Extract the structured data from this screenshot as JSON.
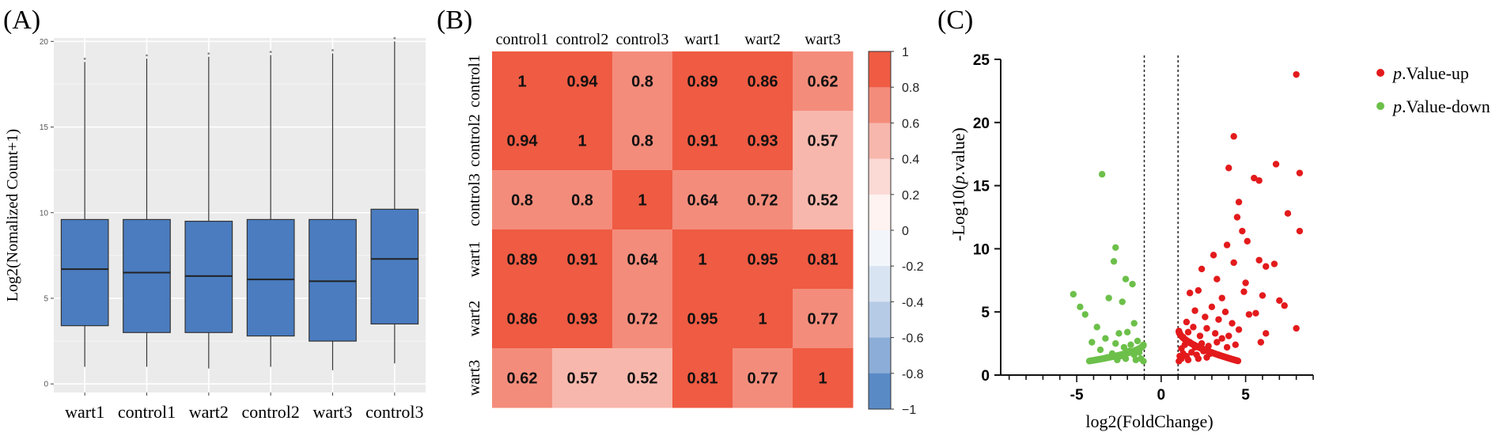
{
  "panel_labels": {
    "a": "(A)",
    "b": "(B)",
    "c": "(C)"
  },
  "colors": {
    "box_fill": "#4a7cbf",
    "panel_bg": "#ebebeb",
    "heat_high": "#ef5b43",
    "heat_mid": "#ffffff",
    "heat_low": "#5a8ac6",
    "up": "#e31a1c",
    "down": "#6cc04a"
  },
  "chart_data": [
    {
      "id": "boxplot",
      "type": "box",
      "title": "",
      "xlabel": "",
      "ylabel": "Log2(Nomalized Count+1)",
      "ylim": [
        -0.5,
        20.2
      ],
      "yticks": [
        0,
        5,
        10,
        15,
        20
      ],
      "categories": [
        "wart1",
        "control1",
        "wart2",
        "control2",
        "wart3",
        "control3"
      ],
      "boxes": [
        {
          "name": "wart1",
          "min": 1.0,
          "q1": 3.4,
          "median": 6.7,
          "q3": 9.6,
          "max": 18.8
        },
        {
          "name": "control1",
          "min": 1.0,
          "q1": 3.0,
          "median": 6.5,
          "q3": 9.6,
          "max": 19.0
        },
        {
          "name": "wart2",
          "min": 0.9,
          "q1": 3.0,
          "median": 6.3,
          "q3": 9.5,
          "max": 19.1
        },
        {
          "name": "control2",
          "min": 1.0,
          "q1": 2.8,
          "median": 6.1,
          "q3": 9.6,
          "max": 19.2
        },
        {
          "name": "wart3",
          "min": 0.8,
          "q1": 2.5,
          "median": 6.0,
          "q3": 9.6,
          "max": 19.3
        },
        {
          "name": "control3",
          "min": 1.2,
          "q1": 3.5,
          "median": 7.3,
          "q3": 10.2,
          "max": 20.0
        }
      ]
    },
    {
      "id": "heatmap",
      "type": "heatmap",
      "title": "",
      "column_labels": [
        "control1",
        "control2",
        "control3",
        "wart1",
        "wart2",
        "wart3"
      ],
      "row_labels": [
        "control1",
        "control2",
        "control3",
        "wart1",
        "wart2",
        "wart3"
      ],
      "matrix": [
        [
          1,
          0.94,
          0.8,
          0.89,
          0.86,
          0.62
        ],
        [
          0.94,
          1,
          0.8,
          0.91,
          0.93,
          0.57
        ],
        [
          0.8,
          0.8,
          1,
          0.64,
          0.72,
          0.52
        ],
        [
          0.89,
          0.91,
          0.64,
          1,
          0.95,
          0.81
        ],
        [
          0.86,
          0.93,
          0.72,
          0.95,
          1,
          0.77
        ],
        [
          0.62,
          0.57,
          0.52,
          0.81,
          0.77,
          1
        ]
      ],
      "colorbar_range": [
        -1,
        1
      ],
      "colorbar_ticks": [
        "1",
        "0.8",
        "0.6",
        "0.4",
        "0.2",
        "0",
        "-0.2",
        "-0.4",
        "-0.6",
        "-0.8",
        "−1"
      ]
    },
    {
      "id": "volcano",
      "type": "scatter",
      "title": "",
      "xlabel": "log2(FoldChange)",
      "ylabel_prefix": "-Log10(",
      "ylabel_italic": "p",
      "ylabel_suffix": ".value)",
      "xlim": [
        -9.5,
        9
      ],
      "ylim": [
        0,
        25
      ],
      "xticks": [
        -5,
        0,
        5
      ],
      "yticks": [
        0,
        5,
        10,
        15,
        20,
        25
      ],
      "thresholds_x": [
        -1,
        1
      ],
      "legend_position": "top-right",
      "series": [
        {
          "name": "up",
          "legend_italic": "p",
          "legend_text": ".Value-up",
          "points": [
            [
              8.0,
              23.8
            ],
            [
              4.3,
              18.9
            ],
            [
              8.2,
              16.0
            ],
            [
              6.8,
              16.7
            ],
            [
              5.5,
              15.6
            ],
            [
              5.8,
              15.4
            ],
            [
              4.0,
              16.4
            ],
            [
              7.5,
              12.8
            ],
            [
              8.2,
              11.4
            ],
            [
              4.6,
              13.7
            ],
            [
              4.5,
              12.5
            ],
            [
              4.8,
              11.4
            ],
            [
              3.9,
              10.3
            ],
            [
              5.1,
              10.6
            ],
            [
              5.8,
              9.1
            ],
            [
              4.3,
              8.9
            ],
            [
              3.1,
              9.5
            ],
            [
              6.2,
              8.6
            ],
            [
              6.7,
              8.8
            ],
            [
              2.4,
              8.4
            ],
            [
              3.3,
              7.6
            ],
            [
              5.0,
              7.3
            ],
            [
              7.0,
              5.9
            ],
            [
              7.3,
              5.5
            ],
            [
              6.0,
              6.3
            ],
            [
              1.7,
              6.5
            ],
            [
              2.2,
              6.7
            ],
            [
              3.6,
              6.1
            ],
            [
              4.9,
              6.6
            ],
            [
              8.0,
              3.7
            ],
            [
              6.2,
              3.3
            ],
            [
              5.9,
              2.6
            ],
            [
              1.5,
              4.2
            ],
            [
              2.0,
              5.1
            ],
            [
              2.6,
              4.6
            ],
            [
              3.0,
              5.4
            ],
            [
              3.4,
              4.4
            ],
            [
              3.8,
              5.0
            ],
            [
              4.2,
              4.1
            ],
            [
              4.6,
              3.6
            ],
            [
              5.2,
              4.8
            ],
            [
              5.6,
              4.9
            ],
            [
              1.3,
              3.0
            ],
            [
              1.6,
              3.4
            ],
            [
              1.9,
              3.8
            ],
            [
              2.3,
              3.1
            ],
            [
              2.7,
              3.7
            ],
            [
              3.2,
              3.3
            ],
            [
              3.6,
              2.9
            ],
            [
              4.0,
              3.1
            ],
            [
              1.2,
              2.1
            ],
            [
              1.4,
              2.4
            ],
            [
              1.7,
              2.6
            ],
            [
              2.0,
              2.2
            ],
            [
              2.4,
              2.5
            ],
            [
              2.8,
              2.3
            ],
            [
              3.3,
              2.6
            ],
            [
              3.9,
              2.2
            ],
            [
              4.4,
              2.4
            ],
            [
              1.1,
              1.5
            ],
            [
              1.3,
              1.7
            ],
            [
              1.5,
              1.5
            ],
            [
              1.8,
              1.8
            ],
            [
              2.1,
              1.6
            ],
            [
              2.5,
              1.9
            ],
            [
              2.9,
              1.7
            ],
            [
              3.4,
              1.6
            ],
            [
              1.2,
              1.3
            ],
            [
              1.6,
              1.2
            ],
            [
              2.2,
              1.3
            ],
            [
              2.7,
              1.4
            ]
          ]
        },
        {
          "name": "down",
          "legend_italic": "p",
          "legend_text": ".Value-down",
          "points": [
            [
              -3.5,
              15.9
            ],
            [
              -2.7,
              10.1
            ],
            [
              -2.8,
              9.0
            ],
            [
              -1.7,
              7.2
            ],
            [
              -2.1,
              7.6
            ],
            [
              -5.2,
              6.4
            ],
            [
              -4.8,
              5.4
            ],
            [
              -3.1,
              6.1
            ],
            [
              -2.3,
              5.8
            ],
            [
              -4.5,
              4.8
            ],
            [
              -3.8,
              3.8
            ],
            [
              -1.6,
              4.1
            ],
            [
              -2.0,
              3.4
            ],
            [
              -2.5,
              3.3
            ],
            [
              -3.3,
              2.9
            ],
            [
              -4.1,
              2.6
            ],
            [
              -1.4,
              2.7
            ],
            [
              -1.8,
              2.4
            ],
            [
              -2.2,
              2.2
            ],
            [
              -2.7,
              2.5
            ],
            [
              -3.6,
              2.0
            ],
            [
              -1.3,
              1.8
            ],
            [
              -1.6,
              1.6
            ],
            [
              -1.9,
              1.9
            ],
            [
              -2.4,
              1.5
            ],
            [
              -2.9,
              1.7
            ],
            [
              -3.2,
              1.4
            ],
            [
              -1.2,
              1.3
            ],
            [
              -1.5,
              1.2
            ],
            [
              -2.1,
              1.3
            ],
            [
              -2.6,
              1.2
            ]
          ]
        }
      ]
    }
  ]
}
